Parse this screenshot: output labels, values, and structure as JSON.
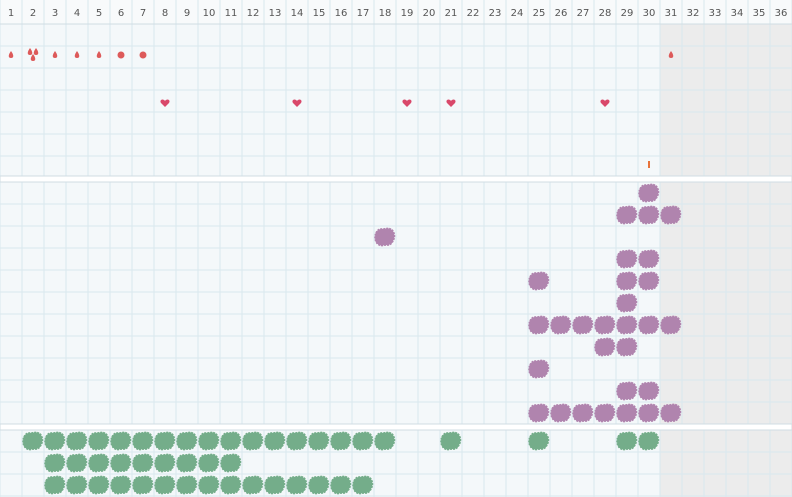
{
  "header": {
    "days": [
      "1",
      "2",
      "3",
      "4",
      "5",
      "6",
      "7",
      "8",
      "9",
      "10",
      "11",
      "12",
      "13",
      "14",
      "15",
      "16",
      "17",
      "18",
      "19",
      "20",
      "21",
      "22",
      "23",
      "24",
      "25",
      "26",
      "27",
      "28",
      "29",
      "30",
      "31",
      "32",
      "33",
      "34",
      "35",
      "36"
    ]
  }
}
